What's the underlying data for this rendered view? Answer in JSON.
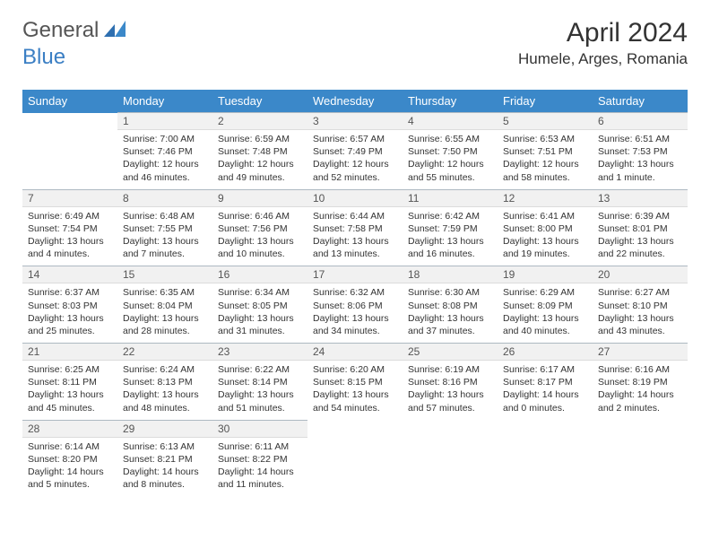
{
  "brand": {
    "part1": "General",
    "part2": "Blue"
  },
  "title": "April 2024",
  "location": "Humele, Arges, Romania",
  "colors": {
    "header_bg": "#3b88c9",
    "header_text": "#ffffff",
    "daynum_bg": "#f1f1f1",
    "daynum_border_top": "#aeb9c2",
    "brand_blue": "#3b7fc4",
    "body_text": "#333333"
  },
  "typography": {
    "title_fontsize": 30,
    "location_fontsize": 17,
    "header_fontsize": 13,
    "daynum_fontsize": 12,
    "cell_fontsize": 10.5
  },
  "weekdays": [
    "Sunday",
    "Monday",
    "Tuesday",
    "Wednesday",
    "Thursday",
    "Friday",
    "Saturday"
  ],
  "weeks": [
    {
      "nums": [
        "",
        "1",
        "2",
        "3",
        "4",
        "5",
        "6"
      ],
      "cells": [
        null,
        {
          "sunrise": "7:00 AM",
          "sunset": "7:46 PM",
          "daylight": "12 hours and 46 minutes."
        },
        {
          "sunrise": "6:59 AM",
          "sunset": "7:48 PM",
          "daylight": "12 hours and 49 minutes."
        },
        {
          "sunrise": "6:57 AM",
          "sunset": "7:49 PM",
          "daylight": "12 hours and 52 minutes."
        },
        {
          "sunrise": "6:55 AM",
          "sunset": "7:50 PM",
          "daylight": "12 hours and 55 minutes."
        },
        {
          "sunrise": "6:53 AM",
          "sunset": "7:51 PM",
          "daylight": "12 hours and 58 minutes."
        },
        {
          "sunrise": "6:51 AM",
          "sunset": "7:53 PM",
          "daylight": "13 hours and 1 minute."
        }
      ]
    },
    {
      "nums": [
        "7",
        "8",
        "9",
        "10",
        "11",
        "12",
        "13"
      ],
      "cells": [
        {
          "sunrise": "6:49 AM",
          "sunset": "7:54 PM",
          "daylight": "13 hours and 4 minutes."
        },
        {
          "sunrise": "6:48 AM",
          "sunset": "7:55 PM",
          "daylight": "13 hours and 7 minutes."
        },
        {
          "sunrise": "6:46 AM",
          "sunset": "7:56 PM",
          "daylight": "13 hours and 10 minutes."
        },
        {
          "sunrise": "6:44 AM",
          "sunset": "7:58 PM",
          "daylight": "13 hours and 13 minutes."
        },
        {
          "sunrise": "6:42 AM",
          "sunset": "7:59 PM",
          "daylight": "13 hours and 16 minutes."
        },
        {
          "sunrise": "6:41 AM",
          "sunset": "8:00 PM",
          "daylight": "13 hours and 19 minutes."
        },
        {
          "sunrise": "6:39 AM",
          "sunset": "8:01 PM",
          "daylight": "13 hours and 22 minutes."
        }
      ]
    },
    {
      "nums": [
        "14",
        "15",
        "16",
        "17",
        "18",
        "19",
        "20"
      ],
      "cells": [
        {
          "sunrise": "6:37 AM",
          "sunset": "8:03 PM",
          "daylight": "13 hours and 25 minutes."
        },
        {
          "sunrise": "6:35 AM",
          "sunset": "8:04 PM",
          "daylight": "13 hours and 28 minutes."
        },
        {
          "sunrise": "6:34 AM",
          "sunset": "8:05 PM",
          "daylight": "13 hours and 31 minutes."
        },
        {
          "sunrise": "6:32 AM",
          "sunset": "8:06 PM",
          "daylight": "13 hours and 34 minutes."
        },
        {
          "sunrise": "6:30 AM",
          "sunset": "8:08 PM",
          "daylight": "13 hours and 37 minutes."
        },
        {
          "sunrise": "6:29 AM",
          "sunset": "8:09 PM",
          "daylight": "13 hours and 40 minutes."
        },
        {
          "sunrise": "6:27 AM",
          "sunset": "8:10 PM",
          "daylight": "13 hours and 43 minutes."
        }
      ]
    },
    {
      "nums": [
        "21",
        "22",
        "23",
        "24",
        "25",
        "26",
        "27"
      ],
      "cells": [
        {
          "sunrise": "6:25 AM",
          "sunset": "8:11 PM",
          "daylight": "13 hours and 45 minutes."
        },
        {
          "sunrise": "6:24 AM",
          "sunset": "8:13 PM",
          "daylight": "13 hours and 48 minutes."
        },
        {
          "sunrise": "6:22 AM",
          "sunset": "8:14 PM",
          "daylight": "13 hours and 51 minutes."
        },
        {
          "sunrise": "6:20 AM",
          "sunset": "8:15 PM",
          "daylight": "13 hours and 54 minutes."
        },
        {
          "sunrise": "6:19 AM",
          "sunset": "8:16 PM",
          "daylight": "13 hours and 57 minutes."
        },
        {
          "sunrise": "6:17 AM",
          "sunset": "8:17 PM",
          "daylight": "14 hours and 0 minutes."
        },
        {
          "sunrise": "6:16 AM",
          "sunset": "8:19 PM",
          "daylight": "14 hours and 2 minutes."
        }
      ]
    },
    {
      "nums": [
        "28",
        "29",
        "30",
        "",
        "",
        "",
        ""
      ],
      "cells": [
        {
          "sunrise": "6:14 AM",
          "sunset": "8:20 PM",
          "daylight": "14 hours and 5 minutes."
        },
        {
          "sunrise": "6:13 AM",
          "sunset": "8:21 PM",
          "daylight": "14 hours and 8 minutes."
        },
        {
          "sunrise": "6:11 AM",
          "sunset": "8:22 PM",
          "daylight": "14 hours and 11 minutes."
        },
        null,
        null,
        null,
        null
      ]
    }
  ],
  "labels": {
    "sunrise": "Sunrise:",
    "sunset": "Sunset:",
    "daylight": "Daylight:"
  }
}
